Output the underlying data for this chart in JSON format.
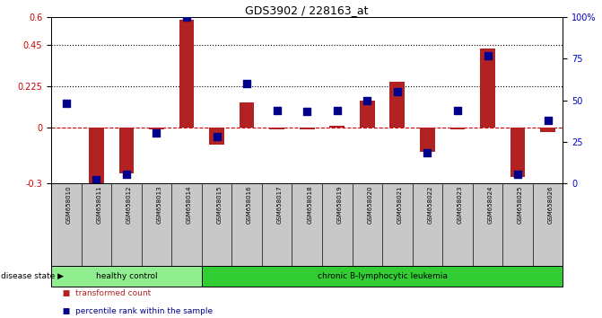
{
  "title": "GDS3902 / 228163_at",
  "samples": [
    "GSM658010",
    "GSM658011",
    "GSM658012",
    "GSM658013",
    "GSM658014",
    "GSM658015",
    "GSM658016",
    "GSM658017",
    "GSM658018",
    "GSM658019",
    "GSM658020",
    "GSM658021",
    "GSM658022",
    "GSM658023",
    "GSM658024",
    "GSM658025",
    "GSM658026"
  ],
  "transformed_count": [
    0.0,
    -0.32,
    -0.25,
    -0.01,
    0.59,
    -0.09,
    0.14,
    -0.01,
    -0.01,
    0.01,
    0.15,
    0.25,
    -0.13,
    -0.01,
    0.43,
    -0.27,
    -0.025
  ],
  "percentile_rank": [
    48,
    2,
    5,
    30,
    100,
    28,
    60,
    44,
    43,
    44,
    50,
    55,
    18,
    44,
    77,
    5,
    38
  ],
  "ylim_left": [
    -0.3,
    0.6
  ],
  "ylim_right": [
    0,
    100
  ],
  "yticks_left": [
    -0.3,
    0.0,
    0.225,
    0.45,
    0.6
  ],
  "yticks_right": [
    0,
    25,
    50,
    75,
    100
  ],
  "ytick_labels_left": [
    "-0.3",
    "0",
    "0.225",
    "0.45",
    "0.6"
  ],
  "ytick_labels_right": [
    "0",
    "25",
    "50",
    "75",
    "100%"
  ],
  "hlines": [
    0.225,
    0.45
  ],
  "bar_color": "#b22222",
  "dot_color": "#00008b",
  "bar_width": 0.5,
  "dot_size": 28,
  "groups": [
    {
      "label": "healthy control",
      "start": 0,
      "end": 4,
      "color": "#90ee90"
    },
    {
      "label": "chronic B-lymphocytic leukemia",
      "start": 5,
      "end": 16,
      "color": "#32cd32"
    }
  ],
  "disease_state_label": "disease state",
  "legend_items": [
    {
      "color": "#b22222",
      "label": "transformed count"
    },
    {
      "color": "#00008b",
      "label": "percentile rank within the sample"
    }
  ],
  "bg_color": "#ffffff",
  "plot_bg": "#ffffff",
  "tick_label_color_left": "#cc0000",
  "tick_label_color_right": "#0000cc",
  "zero_line_color": "#cc0000",
  "zero_line_style": "--",
  "hline_color": "#000000",
  "hline_style": ":",
  "label_bg": "#c8c8c8",
  "spine_color": "#000000"
}
